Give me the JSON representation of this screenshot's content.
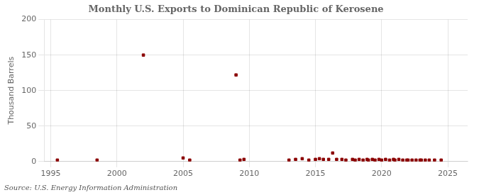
{
  "chart_data": {
    "type": "scatter",
    "title": "Monthly U.S. Exports to Dominican Republic of Kerosene",
    "ylabel": "Thousand Barrels",
    "annotations": [
      "Source: U.S. Energy Information Administration"
    ],
    "color": "#8b0000",
    "marker": "square",
    "grid": true,
    "x": [
      1995.5,
      1998.5,
      2002.0,
      2005.0,
      2005.5,
      2009.0,
      2009.3,
      2009.6,
      2013.0,
      2013.5,
      2014.0,
      2014.5,
      2015.0,
      2015.3,
      2015.6,
      2016.0,
      2016.3,
      2016.6,
      2017.0,
      2017.3,
      2017.8,
      2018.0,
      2018.3,
      2018.6,
      2018.9,
      2019.0,
      2019.3,
      2019.5,
      2019.8,
      2020.0,
      2020.3,
      2020.6,
      2020.9,
      2021.0,
      2021.3,
      2021.6,
      2021.9,
      2022.0,
      2022.3,
      2022.6,
      2022.9,
      2023.0,
      2023.3,
      2023.6,
      2024.0,
      2024.5
    ],
    "values": [
      2,
      2,
      150,
      5,
      2,
      122,
      2,
      3,
      2,
      3,
      4,
      2,
      3,
      4,
      3,
      3,
      12,
      3,
      3,
      2,
      3,
      2,
      3,
      2,
      3,
      2,
      3,
      2,
      3,
      2,
      3,
      2,
      3,
      2,
      3,
      2,
      2,
      2,
      2,
      2,
      2,
      2,
      2,
      2,
      2,
      2
    ],
    "xlim": [
      1994.5,
      2026.5
    ],
    "xticks": [
      1995,
      2000,
      2005,
      2010,
      2015,
      2020,
      2025
    ],
    "ylim": [
      0,
      200
    ],
    "yticks": [
      0,
      50,
      100,
      150,
      200
    ]
  }
}
